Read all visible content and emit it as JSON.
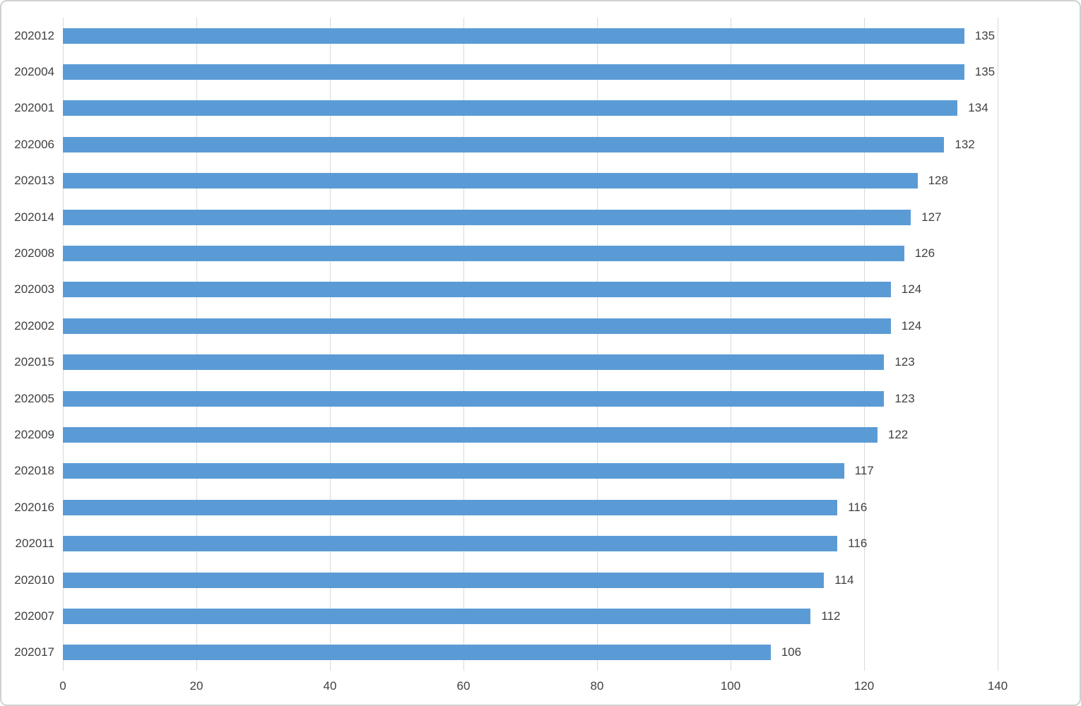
{
  "chart_data": {
    "type": "bar",
    "orientation": "horizontal",
    "title": "",
    "xlabel": "",
    "ylabel": "",
    "categories": [
      "202012",
      "202004",
      "202001",
      "202006",
      "202013",
      "202014",
      "202008",
      "202003",
      "202002",
      "202015",
      "202005",
      "202009",
      "202018",
      "202016",
      "202011",
      "202010",
      "202007",
      "202017"
    ],
    "values": [
      135,
      135,
      134,
      132,
      128,
      127,
      126,
      124,
      124,
      123,
      123,
      122,
      117,
      116,
      116,
      114,
      112,
      106
    ],
    "data_labels": [
      "135",
      "135",
      "134",
      "132",
      "128",
      "127",
      "126",
      "124",
      "124",
      "123",
      "123",
      "122",
      "117",
      "116",
      "116",
      "114",
      "112",
      "106"
    ],
    "xlim": [
      0,
      140
    ],
    "x_ticks": [
      0,
      20,
      40,
      60,
      80,
      100,
      120,
      140
    ],
    "x_tick_labels": [
      "0",
      "20",
      "40",
      "60",
      "80",
      "100",
      "120",
      "140"
    ],
    "grid": true,
    "legend": false,
    "colors": {
      "bar": "#5b9bd5",
      "gridline": "#d9d9d9",
      "label": "#404040",
      "chart_border": "#d0d0d0",
      "background": "#ffffff"
    }
  }
}
